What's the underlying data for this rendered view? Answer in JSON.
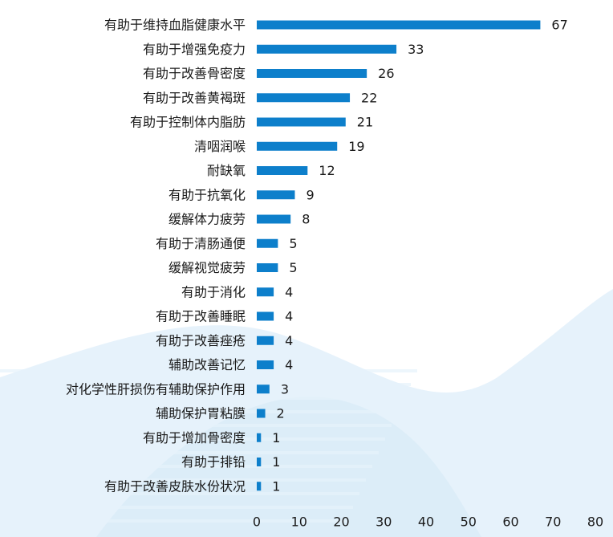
{
  "colors": {
    "bar": "#0d7fcb",
    "wave_light": "#e6f2fb",
    "wave_mid": "#d5e9f7",
    "text": "#1a1a1a"
  },
  "chart_data": {
    "type": "bar",
    "orientation": "horizontal",
    "title": "",
    "xlabel": "",
    "ylabel": "",
    "xlim": [
      0,
      80
    ],
    "x_ticks": [
      0,
      10,
      20,
      30,
      40,
      50,
      60,
      70,
      80
    ],
    "grid": false,
    "legend": "none",
    "categories": [
      "有助于维持血脂健康水平",
      "有助于增强免疫力",
      "有助于改善骨密度",
      "有助于改善黄褐斑",
      "有助于控制体内脂肪",
      "清咽润喉",
      "耐缺氧",
      "有助于抗氧化",
      "缓解体力疲劳",
      "有助于清肠通便",
      "缓解视觉疲劳",
      "有助于消化",
      "有助于改善睡眠",
      "有助于改善痤疮",
      "辅助改善记忆",
      "对化学性肝损伤有辅助保护作用",
      "辅助保护胃粘膜",
      "有助于增加骨密度",
      "有助于排铅",
      "有助于改善皮肤水份状况"
    ],
    "values": [
      67,
      33,
      26,
      22,
      21,
      19,
      12,
      9,
      8,
      5,
      5,
      4,
      4,
      4,
      4,
      3,
      2,
      1,
      1,
      1
    ]
  }
}
